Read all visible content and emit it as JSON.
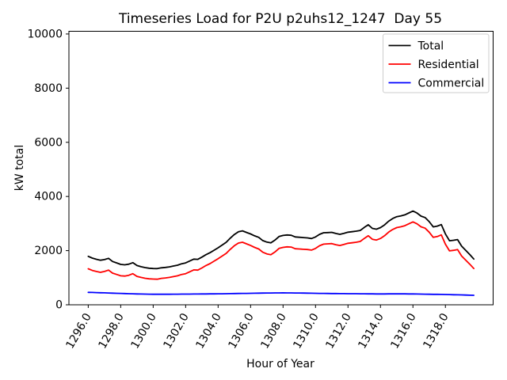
{
  "chart_data": {
    "type": "line",
    "title": "Timeseries Load for P2U p2uhs12_1247  Day 55",
    "xlabel": "Hour of Year",
    "ylabel": "kW total",
    "grid": false,
    "legend_position": "upper right",
    "xlim": [
      1294.81,
      1320.94
    ],
    "ylim": [
      0,
      10100
    ],
    "yticks": [
      0,
      2000,
      4000,
      6000,
      8000,
      10000
    ],
    "ytick_labels": [
      "0",
      "2000",
      "4000",
      "6000",
      "8000",
      "10000"
    ],
    "xticks": [
      1296,
      1298,
      1300,
      1302,
      1304,
      1306,
      1308,
      1310,
      1312,
      1314,
      1316,
      1318
    ],
    "xtick_labels": [
      "1296.0",
      "1298.0",
      "1300.0",
      "1302.0",
      "1304.0",
      "1306.0",
      "1308.0",
      "1310.0",
      "1312.0",
      "1314.0",
      "1316.0",
      "1318.0"
    ],
    "x": [
      1296.0,
      1296.25,
      1296.5,
      1296.75,
      1297.0,
      1297.25,
      1297.5,
      1297.75,
      1298.0,
      1298.25,
      1298.5,
      1298.75,
      1299.0,
      1299.25,
      1299.5,
      1299.75,
      1300.0,
      1300.25,
      1300.5,
      1300.75,
      1301.0,
      1301.25,
      1301.5,
      1301.75,
      1302.0,
      1302.25,
      1302.5,
      1302.75,
      1303.0,
      1303.25,
      1303.5,
      1303.75,
      1304.0,
      1304.25,
      1304.5,
      1304.75,
      1305.0,
      1305.25,
      1305.5,
      1305.75,
      1306.0,
      1306.25,
      1306.5,
      1306.75,
      1307.0,
      1307.25,
      1307.5,
      1307.75,
      1308.0,
      1308.25,
      1308.5,
      1308.75,
      1309.0,
      1309.25,
      1309.5,
      1309.75,
      1310.0,
      1310.25,
      1310.5,
      1310.75,
      1311.0,
      1311.25,
      1311.5,
      1311.75,
      1312.0,
      1312.25,
      1312.5,
      1312.75,
      1313.0,
      1313.25,
      1313.5,
      1313.75,
      1314.0,
      1314.25,
      1314.5,
      1314.75,
      1315.0,
      1315.25,
      1315.5,
      1315.75,
      1316.0,
      1316.25,
      1316.5,
      1316.75,
      1317.0,
      1317.25,
      1317.5,
      1317.75,
      1318.0,
      1318.25,
      1318.5,
      1318.75,
      1319.0,
      1319.25,
      1319.5,
      1319.75
    ],
    "series": [
      {
        "name": "Total",
        "color": "#000000",
        "values": [
          1790,
          1725,
          1680,
          1645,
          1670,
          1715,
          1600,
          1545,
          1490,
          1475,
          1500,
          1555,
          1450,
          1407,
          1375,
          1352,
          1340,
          1335,
          1365,
          1380,
          1400,
          1431,
          1462,
          1514,
          1545,
          1616,
          1688,
          1679,
          1760,
          1851,
          1923,
          2014,
          2105,
          2207,
          2310,
          2462,
          2595,
          2697,
          2730,
          2672,
          2615,
          2547,
          2490,
          2372,
          2315,
          2286,
          2388,
          2519,
          2560,
          2579,
          2568,
          2506,
          2495,
          2482,
          2470,
          2447,
          2505,
          2602,
          2660,
          2667,
          2675,
          2634,
          2602,
          2641,
          2680,
          2699,
          2718,
          2746,
          2855,
          2954,
          2822,
          2791,
          2850,
          2951,
          3083,
          3184,
          3255,
          3284,
          3322,
          3391,
          3460,
          3387,
          3275,
          3222,
          3070,
          2877,
          2905,
          2962,
          2620,
          2366,
          2382,
          2409,
          2165,
          2010,
          1855,
          1690
        ]
      },
      {
        "name": "Residential",
        "color": "#ff0000",
        "values": [
          1330,
          1270,
          1230,
          1200,
          1230,
          1280,
          1170,
          1120,
          1070,
          1060,
          1090,
          1150,
          1050,
          1010,
          980,
          960,
          950,
          945,
          975,
          990,
          1010,
          1040,
          1070,
          1120,
          1150,
          1220,
          1290,
          1280,
          1360,
          1450,
          1520,
          1610,
          1700,
          1800,
          1900,
          2050,
          2180,
          2280,
          2310,
          2250,
          2190,
          2120,
          2060,
          1940,
          1880,
          1850,
          1950,
          2080,
          2120,
          2140,
          2130,
          2070,
          2060,
          2050,
          2040,
          2020,
          2080,
          2180,
          2240,
          2250,
          2260,
          2220,
          2190,
          2230,
          2270,
          2290,
          2310,
          2340,
          2450,
          2550,
          2420,
          2390,
          2450,
          2550,
          2680,
          2780,
          2850,
          2880,
          2920,
          2990,
          3060,
          2990,
          2880,
          2830,
          2680,
          2490,
          2520,
          2580,
          2240,
          1990,
          2010,
          2040,
          1800,
          1650,
          1500,
          1340
        ]
      },
      {
        "name": "Commercial",
        "color": "#0000ff",
        "values": [
          460,
          455,
          450,
          445,
          440,
          435,
          430,
          425,
          420,
          415,
          410,
          405,
          400,
          397,
          395,
          392,
          390,
          390,
          390,
          390,
          390,
          391,
          392,
          394,
          395,
          396,
          398,
          399,
          400,
          401,
          403,
          404,
          405,
          407,
          410,
          412,
          415,
          417,
          420,
          422,
          425,
          427,
          430,
          432,
          435,
          436,
          438,
          439,
          440,
          439,
          438,
          436,
          435,
          432,
          430,
          427,
          425,
          422,
          420,
          417,
          415,
          414,
          412,
          411,
          410,
          409,
          408,
          406,
          405,
          404,
          402,
          401,
          400,
          401,
          403,
          404,
          405,
          404,
          402,
          401,
          400,
          397,
          395,
          392,
          390,
          387,
          385,
          382,
          380,
          376,
          372,
          369,
          365,
          360,
          355,
          350
        ]
      }
    ]
  }
}
